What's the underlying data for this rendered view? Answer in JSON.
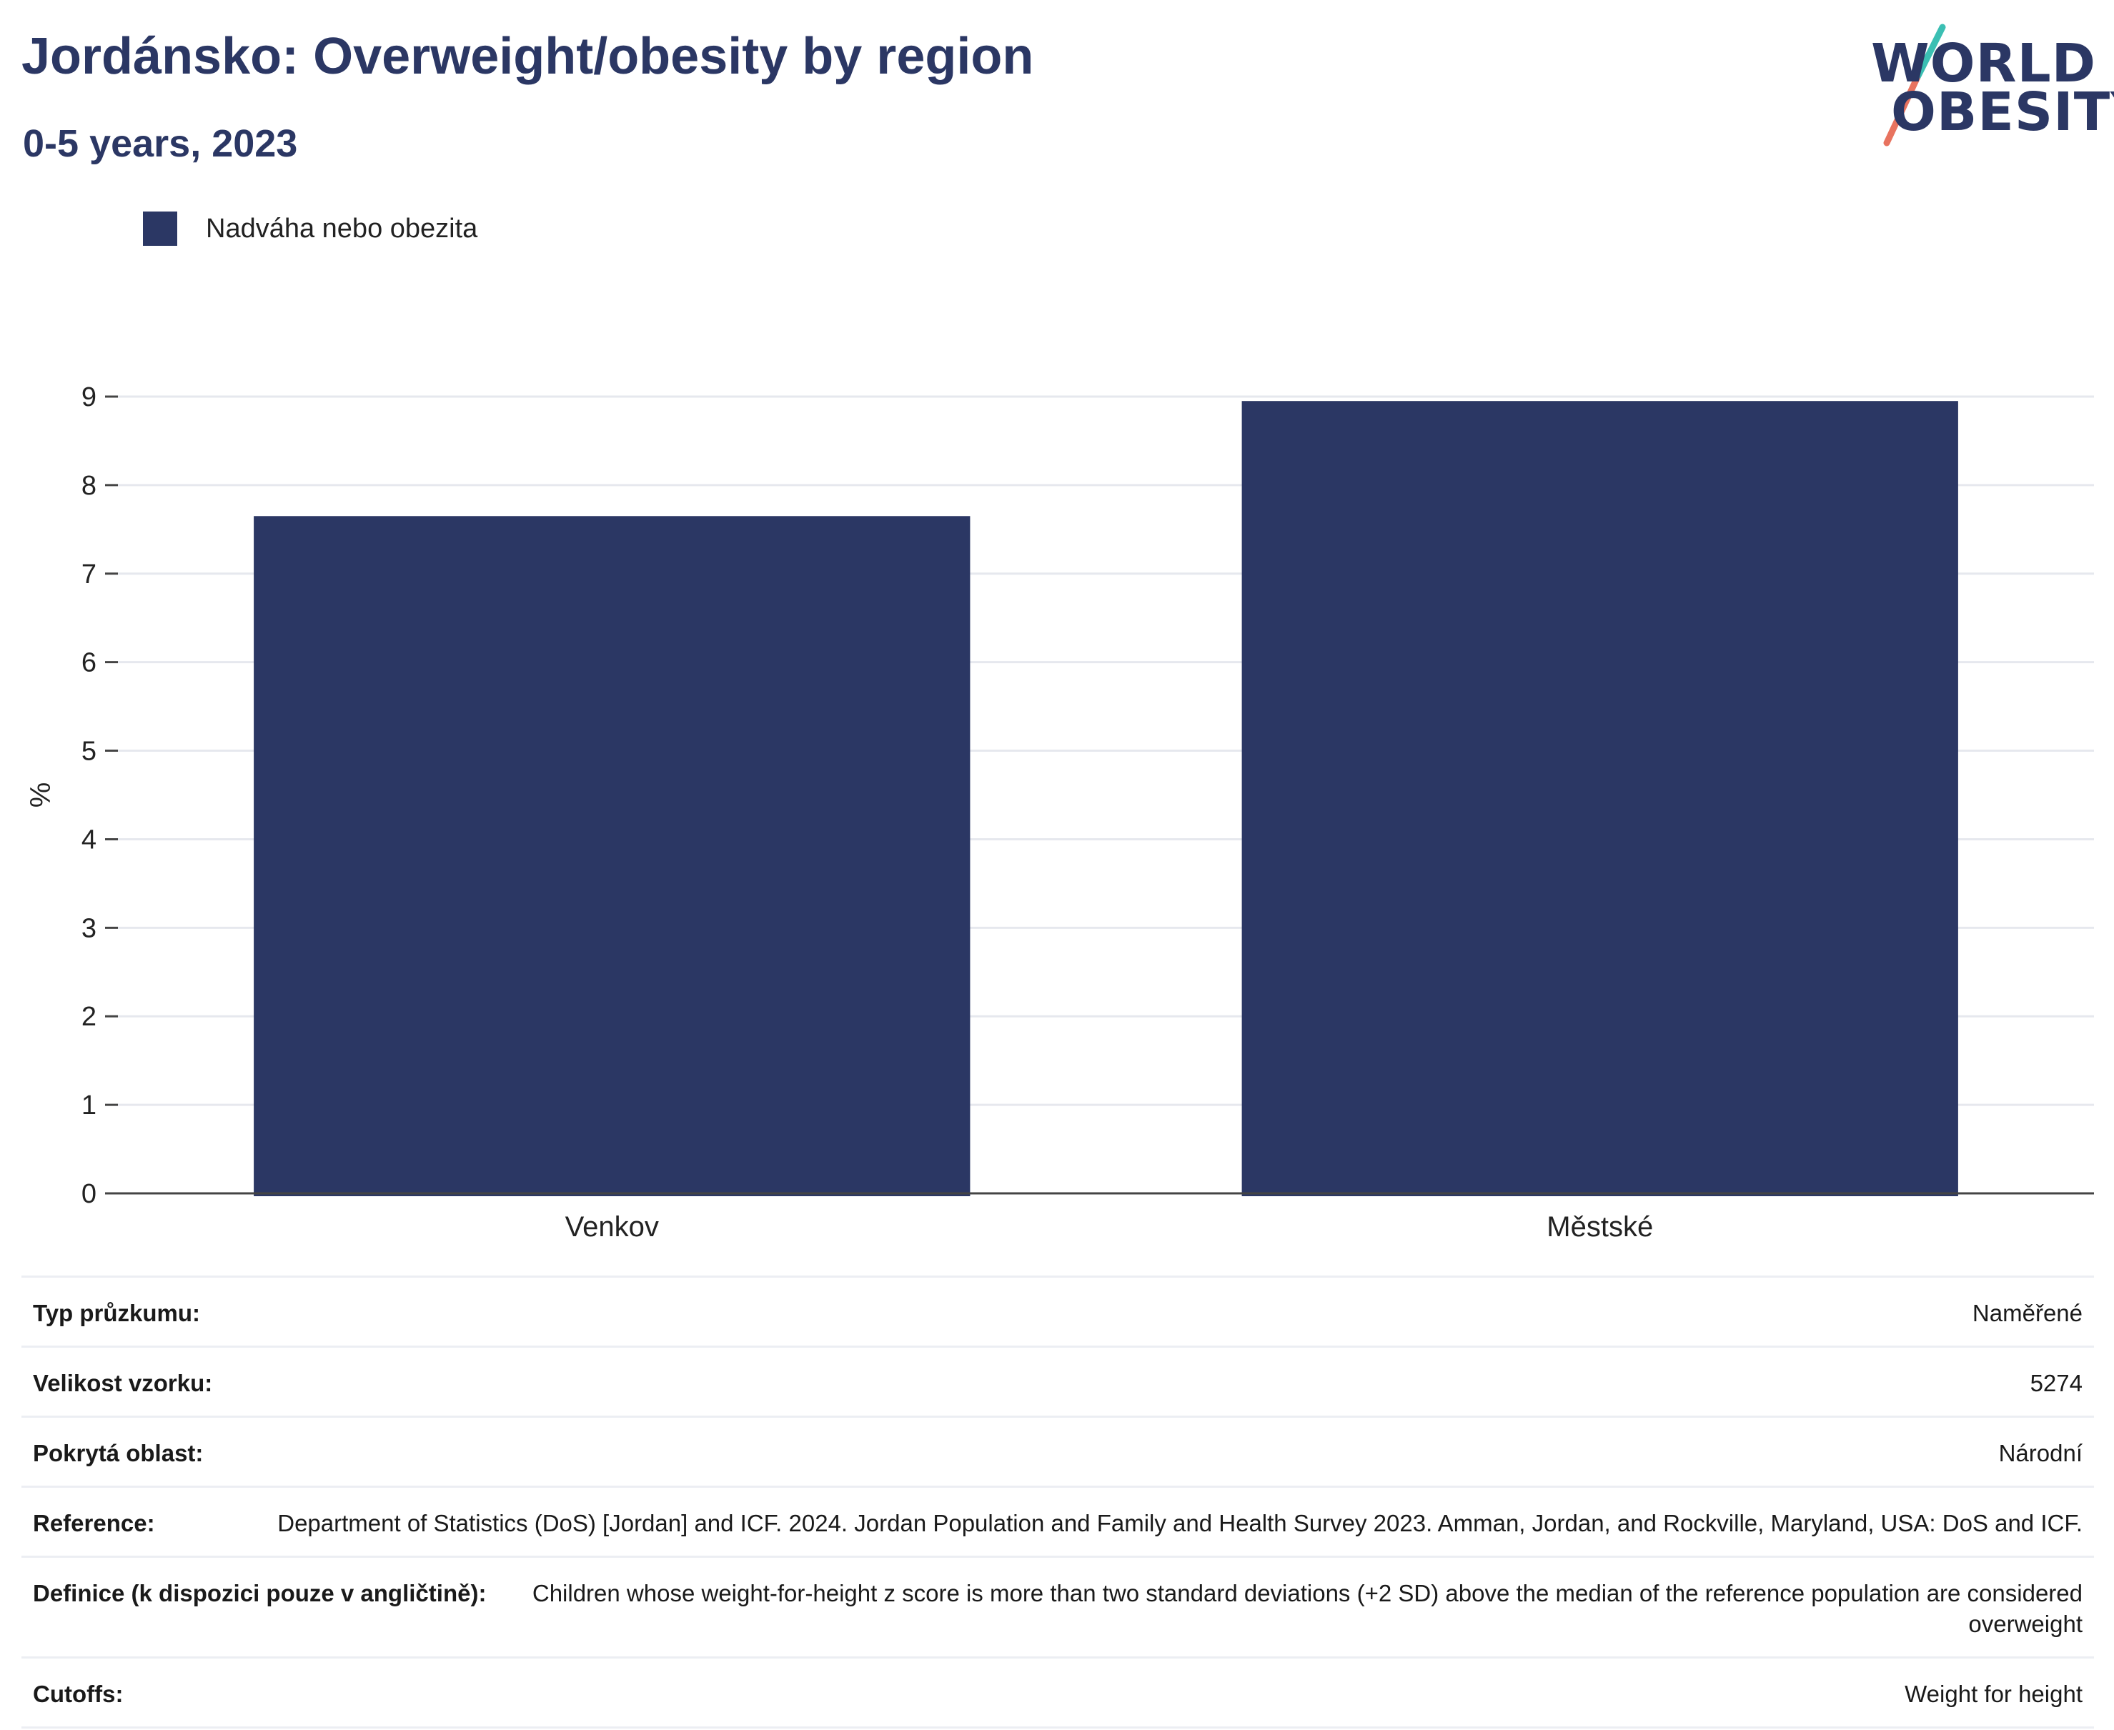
{
  "header": {
    "title": "Jordánsko: Overweight/obesity by region",
    "subtitle": "0-5 years, 2023"
  },
  "logo": {
    "line1": "WORLD",
    "line2": "OBESITY",
    "colors": {
      "text": "#2b3764",
      "slash_top": "#3bbfb3",
      "slash_bottom": "#e8735f"
    }
  },
  "legend": {
    "items": [
      {
        "label": "Nadváha nebo obezita",
        "color": "#2b3764"
      }
    ]
  },
  "chart_data": {
    "type": "bar",
    "categories": [
      "Venkov",
      "Městské"
    ],
    "series": [
      {
        "name": "Nadváha nebo obezita",
        "values": [
          7.65,
          8.95
        ],
        "color": "#2b3764"
      }
    ],
    "ylabel": "%",
    "xlabel": "",
    "ylim": [
      0,
      9
    ],
    "yticks": [
      "0",
      "1",
      "2",
      "3",
      "4",
      "5",
      "6",
      "7",
      "8",
      "9"
    ],
    "grid": true
  },
  "metadata": {
    "rows": [
      {
        "key": "Typ průzkumu:",
        "value": "Naměřené"
      },
      {
        "key": "Velikost vzorku:",
        "value": "5274"
      },
      {
        "key": "Pokrytá oblast:",
        "value": "Národní"
      },
      {
        "key": "Reference:",
        "value": "Department of Statistics (DoS) [Jordan] and ICF. 2024. Jordan Population and Family and Health Survey 2023. Amman, Jordan, and Rockville, Maryland, USA: DoS and ICF."
      },
      {
        "key": "Definice (k dispozici pouze v angličtině):",
        "value": "Children whose weight-for-height z score is more than two standard deviations (+2 SD) above the median of the reference population are considered overweight"
      },
      {
        "key": "Cutoffs:",
        "value": "Weight for height"
      }
    ]
  }
}
